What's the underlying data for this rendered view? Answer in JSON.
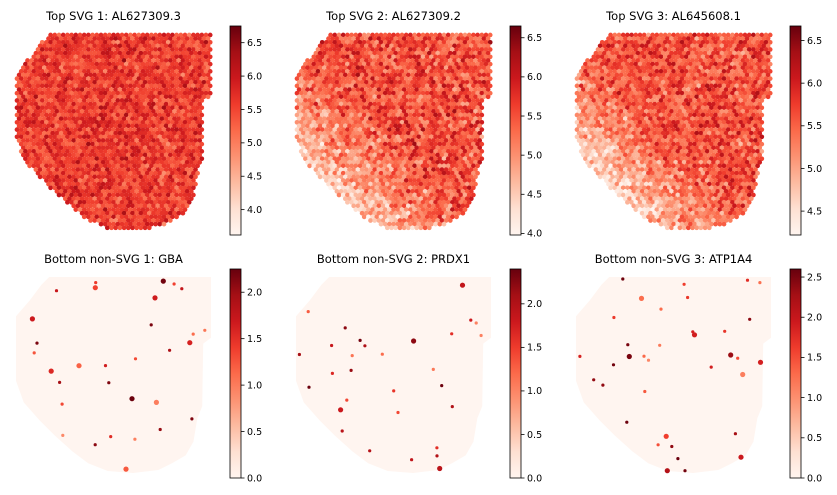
{
  "colormap": "Reds",
  "colors": {
    "low": "#fff5f0",
    "high": "#67000d",
    "background": "#ffffff"
  },
  "chart_data": [
    {
      "type": "scatter",
      "title": "Top SVG 1: AL627309.3",
      "gene": "AL627309.3",
      "vmin": 3.62,
      "vmax": 6.75,
      "ticks": [
        4.0,
        4.5,
        5.0,
        5.5,
        6.0,
        6.5
      ],
      "tick_labels": [
        "4.0",
        "4.5",
        "5.0",
        "5.5",
        "6.0",
        "6.5"
      ],
      "pattern": "uniform-high",
      "mean_level": 5.6,
      "spread": 0.45,
      "axes": "off",
      "colorbar": "right"
    },
    {
      "type": "scatter",
      "title": "Top SVG 2: AL627309.2",
      "gene": "AL627309.2",
      "vmin": 3.98,
      "vmax": 6.65,
      "ticks": [
        4.0,
        4.5,
        5.0,
        5.5,
        6.0,
        6.5
      ],
      "tick_labels": [
        "4.0",
        "4.5",
        "5.0",
        "5.5",
        "6.0",
        "6.5"
      ],
      "pattern": "gradient-low-bottom-left",
      "mean_level": 5.5,
      "spread": 0.5,
      "axes": "off",
      "colorbar": "right"
    },
    {
      "type": "scatter",
      "title": "Top SVG 3: AL645608.1",
      "gene": "AL645608.1",
      "vmin": 4.22,
      "vmax": 6.67,
      "ticks": [
        4.5,
        5.0,
        5.5,
        6.0,
        6.5
      ],
      "tick_labels": [
        "4.5",
        "5.0",
        "5.5",
        "6.0",
        "6.5"
      ],
      "pattern": "gradient-low-bottom-left",
      "mean_level": 5.6,
      "spread": 0.45,
      "axes": "off",
      "colorbar": "right"
    },
    {
      "type": "scatter",
      "title": "Bottom non-SVG 1: GBA",
      "gene": "GBA",
      "vmin": 0.0,
      "vmax": 2.25,
      "ticks": [
        0.0,
        0.5,
        1.0,
        1.5,
        2.0
      ],
      "tick_labels": [
        "0.0",
        "0.5",
        "1.0",
        "1.5",
        "2.0"
      ],
      "pattern": "sparse",
      "nonzero_spots": 32,
      "axes": "off",
      "colorbar": "right"
    },
    {
      "type": "scatter",
      "title": "Bottom non-SVG 2: PRDX1",
      "gene": "PRDX1",
      "vmin": 0.0,
      "vmax": 2.4,
      "ticks": [
        0.0,
        0.5,
        1.0,
        1.5,
        2.0
      ],
      "tick_labels": [
        "0.0",
        "0.5",
        "1.0",
        "1.5",
        "2.0"
      ],
      "pattern": "sparse",
      "nonzero_spots": 30,
      "axes": "off",
      "colorbar": "right"
    },
    {
      "type": "scatter",
      "title": "Bottom non-SVG 3: ATP1A4",
      "gene": "ATP1A4",
      "vmin": 0.0,
      "vmax": 2.6,
      "ticks": [
        0.0,
        0.5,
        1.0,
        1.5,
        2.0,
        2.5
      ],
      "tick_labels": [
        "0.0",
        "0.5",
        "1.0",
        "1.5",
        "2.0",
        "2.5"
      ],
      "pattern": "sparse",
      "nonzero_spots": 36,
      "axes": "off",
      "colorbar": "right"
    }
  ]
}
